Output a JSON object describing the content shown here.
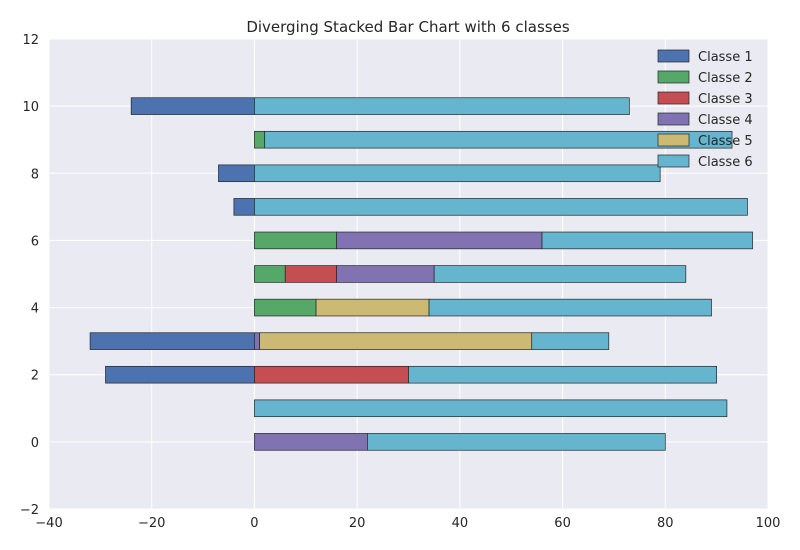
{
  "chart_data": {
    "type": "bar",
    "orientation": "horizontal",
    "stacking": "diverging",
    "title": "Diverging Stacked Bar Chart with 6 classes",
    "xlabel": "",
    "ylabel": "",
    "xlim": [
      -40,
      100
    ],
    "ylim": [
      -2,
      12
    ],
    "xticks": [
      -40,
      -20,
      0,
      20,
      40,
      60,
      80,
      100
    ],
    "yticks": [
      -2,
      0,
      2,
      4,
      6,
      8,
      10,
      12
    ],
    "grid": true,
    "legend_position": "top-right",
    "categories": [
      0,
      1,
      2,
      3,
      4,
      5,
      6,
      7,
      8,
      9,
      10
    ],
    "series": [
      {
        "name": "Classe 1",
        "color": "#4c72b0",
        "values": [
          0,
          0,
          -29,
          -32,
          0,
          0,
          0,
          -4,
          -7,
          0,
          -24
        ]
      },
      {
        "name": "Classe 2",
        "color": "#55a868",
        "values": [
          0,
          0,
          0,
          0,
          12,
          6,
          16,
          0,
          0,
          2,
          0
        ]
      },
      {
        "name": "Classe 3",
        "color": "#c44e52",
        "values": [
          0,
          0,
          30,
          0,
          0,
          10,
          0,
          0,
          0,
          0,
          0
        ]
      },
      {
        "name": "Classe 4",
        "color": "#8172b2",
        "values": [
          22,
          0,
          0,
          1,
          0,
          19,
          40,
          0,
          0,
          0,
          0
        ]
      },
      {
        "name": "Classe 5",
        "color": "#ccb974",
        "values": [
          0,
          0,
          0,
          53,
          22,
          0,
          0,
          0,
          0,
          0,
          0
        ]
      },
      {
        "name": "Classe 6",
        "color": "#64b5cd",
        "values": [
          58,
          92,
          60,
          15,
          55,
          49,
          41,
          96,
          79,
          91,
          73
        ]
      }
    ]
  },
  "colors": {
    "plot_background": "#eaeaf2",
    "grid": "#ffffff",
    "bar_edge": "#262626"
  }
}
